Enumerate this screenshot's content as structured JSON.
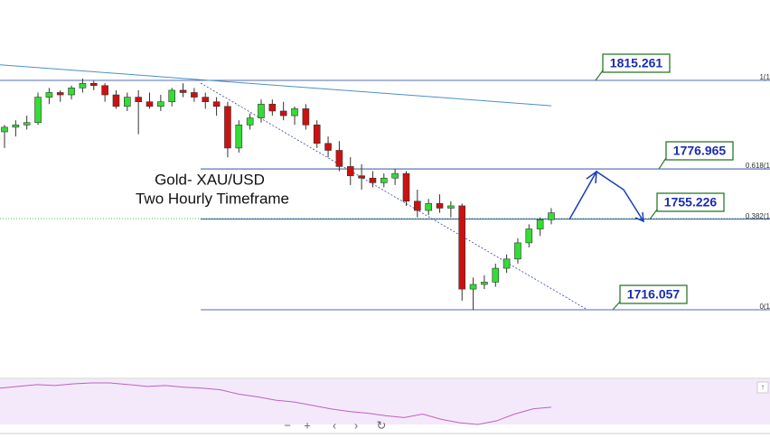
{
  "chart_data": {
    "type": "candlestick",
    "title": "Gold- XAU/USD",
    "subtitle": "Two Hourly Timeframe",
    "up_color": "#33dd33",
    "down_color": "#cc1111",
    "open": [
      1793,
      1795,
      1796,
      1797,
      1808,
      1810,
      1809,
      1812,
      1814,
      1813,
      1809,
      1804,
      1808,
      1806,
      1804,
      1806,
      1811,
      1810,
      1808,
      1806,
      1804,
      1786,
      1796,
      1799,
      1805,
      1802,
      1800,
      1803,
      1796,
      1788,
      1785,
      1778,
      1774,
      1773,
      1771,
      1773,
      1775,
      1763,
      1759,
      1762,
      1760,
      1761,
      1725,
      1727,
      1728,
      1734,
      1738,
      1745,
      1751,
      1755
    ],
    "high": [
      1796,
      1798,
      1800,
      1810,
      1812,
      1811,
      1813,
      1816,
      1815,
      1814,
      1811,
      1810,
      1811,
      1810,
      1809,
      1812,
      1814,
      1812,
      1810,
      1808,
      1806,
      1798,
      1801,
      1807,
      1807,
      1806,
      1804,
      1805,
      1798,
      1791,
      1789,
      1782,
      1779,
      1776,
      1775,
      1777,
      1776,
      1768,
      1764,
      1766,
      1763,
      1762,
      1730,
      1731,
      1736,
      1740,
      1747,
      1753,
      1756,
      1760
    ],
    "low": [
      1786,
      1791,
      1794,
      1796,
      1805,
      1806,
      1807,
      1810,
      1811,
      1806,
      1803,
      1802,
      1792,
      1803,
      1802,
      1804,
      1808,
      1806,
      1803,
      1800,
      1782,
      1784,
      1794,
      1797,
      1800,
      1798,
      1796,
      1794,
      1786,
      1782,
      1776,
      1770,
      1768,
      1769,
      1769,
      1770,
      1761,
      1756,
      1757,
      1758,
      1756,
      1720,
      1716,
      1725,
      1726,
      1732,
      1736,
      1743,
      1748,
      1753
    ],
    "close": [
      1795,
      1796,
      1797,
      1808,
      1810,
      1809,
      1812,
      1814,
      1813,
      1809,
      1804,
      1808,
      1806,
      1804,
      1806,
      1811,
      1810,
      1808,
      1806,
      1804,
      1786,
      1796,
      1799,
      1805,
      1802,
      1800,
      1803,
      1796,
      1788,
      1785,
      1778,
      1774,
      1773,
      1771,
      1773,
      1775,
      1763,
      1759,
      1762,
      1760,
      1761,
      1725,
      1727,
      1728,
      1734,
      1738,
      1745,
      1751,
      1755,
      1758
    ],
    "moving_average": {
      "color": "#4a90c8",
      "values": [
        1822,
        1804.3
      ]
    },
    "levels": {
      "values": [
        1815.261,
        1776.965,
        1755.226,
        1716.057
      ],
      "fib_labels": [
        "1(1",
        "0.618(1",
        "0.382(1",
        "0(1"
      ],
      "color": "#1a3a9a"
    },
    "rsi": {
      "color": "#c060c0",
      "values": [
        62,
        64,
        66,
        65,
        67,
        68,
        68,
        66,
        64,
        65,
        63,
        62,
        60,
        55,
        52,
        48,
        46,
        42,
        38,
        35,
        33,
        30,
        28,
        32,
        26,
        22,
        20,
        24,
        32,
        38,
        40
      ]
    }
  }
}
